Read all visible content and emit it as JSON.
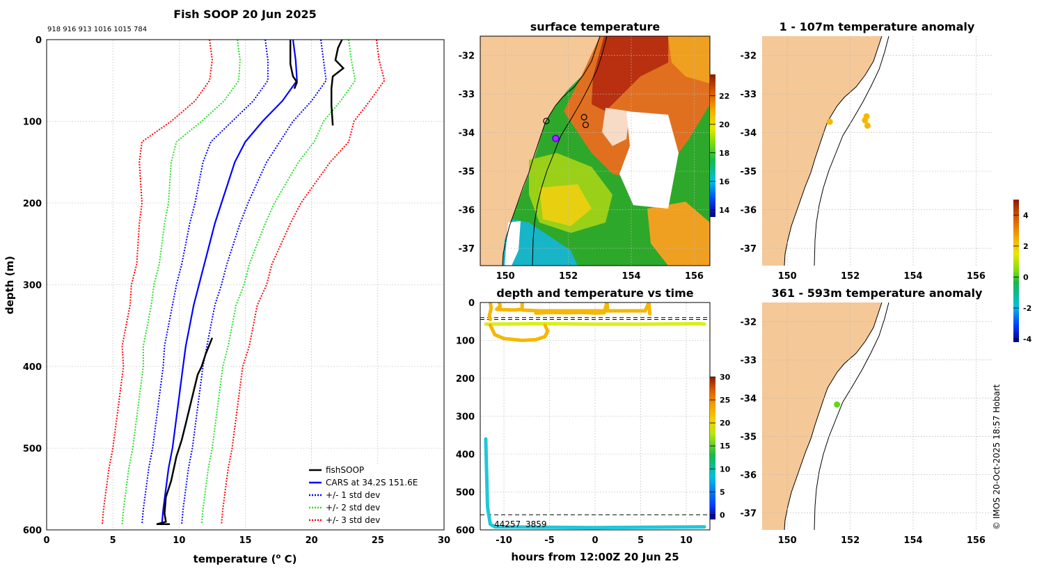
{
  "footer": "© IMOS 20-Oct-2025 18:57 Hobart",
  "chart_data": [
    {
      "type": "line",
      "title": "Fish SOOP 20 Jun 2025",
      "subtitle": "918 916 913 1016 1015 784",
      "xlabel": "temperature (o C)",
      "ylabel": "depth (m)",
      "xlim": [
        0,
        30
      ],
      "ylim": [
        600,
        0
      ],
      "xticks": [
        0,
        5,
        10,
        15,
        20,
        25,
        30
      ],
      "yticks": [
        0,
        100,
        200,
        300,
        400,
        500,
        600
      ],
      "legend_position": "bottom-right",
      "legend": [
        "fishSOOP",
        "CARS at 34.2S 151.6E",
        "+/- 1 std dev",
        "+/- 2 std dev",
        "+/- 3 std dev"
      ],
      "depths": [
        0,
        25,
        50,
        75,
        100,
        125,
        150,
        175,
        200,
        225,
        250,
        275,
        300,
        325,
        350,
        375,
        400,
        425,
        450,
        475,
        500,
        525,
        550,
        575,
        593
      ],
      "cars_mean": [
        18.6,
        18.8,
        18.9,
        17.8,
        16.3,
        15.0,
        14.2,
        13.7,
        13.2,
        12.7,
        12.3,
        11.9,
        11.5,
        11.1,
        10.8,
        10.5,
        10.3,
        10.1,
        9.9,
        9.7,
        9.5,
        9.2,
        9.0,
        8.8,
        8.7
      ],
      "std_1": [
        2.1,
        2.1,
        2.2,
        2.2,
        2.3,
        2.6,
        2.4,
        2.2,
        2.0,
        1.9,
        1.8,
        1.7,
        1.7,
        1.6,
        1.6,
        1.6,
        1.5,
        1.5,
        1.5,
        1.5,
        1.5,
        1.5,
        1.5,
        1.5,
        1.5
      ],
      "series": [
        {
          "name": "fishSOOP",
          "color": "#000000",
          "values": [
            [
              22.3,
              0
            ],
            [
              22.0,
              10
            ],
            [
              21.8,
              25
            ],
            [
              22.4,
              35
            ],
            [
              21.6,
              45
            ],
            [
              21.5,
              60
            ],
            [
              21.5,
              80
            ],
            [
              21.6,
              105
            ]
          ]
        },
        {
          "name": "fishSOOP-2",
          "color": "#000000",
          "values": [
            [
              18.4,
              0
            ],
            [
              18.4,
              30
            ],
            [
              18.6,
              45
            ],
            [
              18.9,
              52
            ],
            [
              18.7,
              60
            ]
          ]
        },
        {
          "name": "fishSOOP-3",
          "color": "#000000",
          "values": [
            [
              12.5,
              365
            ],
            [
              12.0,
              385
            ],
            [
              11.7,
              400
            ],
            [
              11.4,
              410
            ],
            [
              11.1,
              430
            ],
            [
              10.8,
              450
            ],
            [
              10.5,
              470
            ],
            [
              10.2,
              490
            ],
            [
              9.8,
              510
            ],
            [
              9.4,
              540
            ],
            [
              9.0,
              560
            ],
            [
              8.9,
              580
            ],
            [
              9.0,
              590
            ],
            [
              8.3,
              593
            ],
            [
              9.3,
              593
            ]
          ]
        }
      ]
    },
    {
      "type": "heatmap",
      "title": "surface temperature",
      "xlim": [
        149.2,
        156.5
      ],
      "ylim": [
        -37.45,
        -31.5
      ],
      "xticks": [
        150,
        152,
        154,
        156
      ],
      "yticks": [
        -32,
        -33,
        -34,
        -35,
        -36,
        -37
      ],
      "colorbar_ticks": [
        14,
        16,
        18,
        20,
        22
      ],
      "colorbar_range": [
        13.5,
        23.5
      ],
      "markers": [
        [
          151.3,
          -33.7
        ],
        [
          152.5,
          -33.6
        ],
        [
          152.55,
          -33.8
        ]
      ],
      "ship": [
        151.6,
        -34.15
      ]
    },
    {
      "type": "scatter",
      "title": "depth and temperature vs time",
      "xlabel": "hours from 12:00Z 20 Jun 25",
      "xlim": [
        -12.6,
        12.6
      ],
      "ylim": [
        600,
        0
      ],
      "xticks": [
        -10,
        -5,
        0,
        5,
        10
      ],
      "yticks": [
        0,
        100,
        200,
        300,
        400,
        500,
        600
      ],
      "colorbar_ticks": [
        0,
        5,
        10,
        15,
        20,
        25,
        30
      ],
      "colorbar_range": [
        -1,
        30
      ],
      "dashed_depths": [
        40,
        45,
        560
      ],
      "annotation": "44257",
      "annotation2": "3859",
      "series": [
        {
          "name": "shallow-yellow",
          "color": "#d9ef1a",
          "values": [
            [
              -12,
              57
            ],
            [
              -5,
              56
            ],
            [
              0,
              57
            ],
            [
              5,
              57
            ],
            [
              11.5,
              56
            ],
            [
              12,
              57
            ]
          ]
        },
        {
          "name": "orange-1",
          "color": "#f5b700",
          "values": [
            [
              -11.5,
              0
            ],
            [
              -11.4,
              15
            ],
            [
              -11.5,
              25
            ],
            [
              -11.6,
              35
            ],
            [
              -11.5,
              45
            ]
          ]
        },
        {
          "name": "orange-2",
          "color": "#f5b700",
          "values": [
            [
              -6.5,
              28
            ],
            [
              -5,
              26
            ],
            [
              -3,
              27
            ],
            [
              -1.5,
              26
            ],
            [
              0,
              28
            ],
            [
              1,
              27
            ],
            [
              1.3,
              0
            ],
            [
              1.4,
              20
            ]
          ]
        },
        {
          "name": "orange-3",
          "color": "#f5b700",
          "values": [
            [
              -8,
              0
            ],
            [
              -8,
              20
            ],
            [
              -6,
              22
            ],
            [
              -4,
              22
            ],
            [
              0,
              22
            ],
            [
              3,
              22
            ],
            [
              5.5,
              22
            ],
            [
              5.9,
              0
            ],
            [
              6,
              30
            ]
          ]
        },
        {
          "name": "orange-4",
          "color": "#f5b700",
          "values": [
            [
              -11.5,
              60
            ],
            [
              -11,
              85
            ],
            [
              -10,
              95
            ],
            [
              -8,
              100
            ],
            [
              -6.5,
              98
            ],
            [
              -5.5,
              90
            ],
            [
              -5.2,
              75
            ],
            [
              -5.5,
              60
            ]
          ]
        },
        {
          "name": "orange-5",
          "color": "#f5b700",
          "values": [
            [
              -10.5,
              0
            ],
            [
              -10.4,
              10
            ],
            [
              -10.8,
              18
            ],
            [
              -9,
              20
            ],
            [
              -8,
              18
            ]
          ]
        },
        {
          "name": "deep-cyan",
          "color": "#20c8d8",
          "values": [
            [
              -12,
              360
            ],
            [
              -11.9,
              450
            ],
            [
              -11.8,
              540
            ],
            [
              -11.5,
              585
            ],
            [
              -11,
              592
            ],
            [
              -5,
              593
            ],
            [
              0,
              594
            ],
            [
              5,
              593
            ],
            [
              12,
              592
            ]
          ]
        }
      ]
    },
    {
      "type": "scatter",
      "title": "1 - 107m temperature anomaly",
      "xlim": [
        149.2,
        156.5
      ],
      "ylim": [
        -37.45,
        -31.5
      ],
      "xticks": [
        150,
        152,
        154,
        156
      ],
      "yticks": [
        -32,
        -33,
        -34,
        -35,
        -36,
        -37
      ],
      "points": [
        {
          "lon": 151.35,
          "lat": -33.72,
          "anom": 2.5
        },
        {
          "lon": 152.52,
          "lat": -33.58,
          "anom": 2.3
        },
        {
          "lon": 152.47,
          "lat": -33.68,
          "anom": 2.4
        },
        {
          "lon": 152.55,
          "lat": -33.82,
          "anom": 2.4
        }
      ]
    },
    {
      "type": "scatter",
      "title": "361 - 593m temperature anomaly",
      "xlim": [
        149.2,
        156.5
      ],
      "ylim": [
        -37.45,
        -31.5
      ],
      "xticks": [
        150,
        152,
        154,
        156
      ],
      "yticks": [
        -32,
        -33,
        -34,
        -35,
        -36,
        -37
      ],
      "points": [
        {
          "lon": 151.58,
          "lat": -34.17,
          "anom": 0.2
        }
      ],
      "colorbar_ticks": [
        -4,
        -2,
        0,
        2,
        4
      ],
      "colorbar_range": [
        -4.2,
        5
      ]
    }
  ]
}
